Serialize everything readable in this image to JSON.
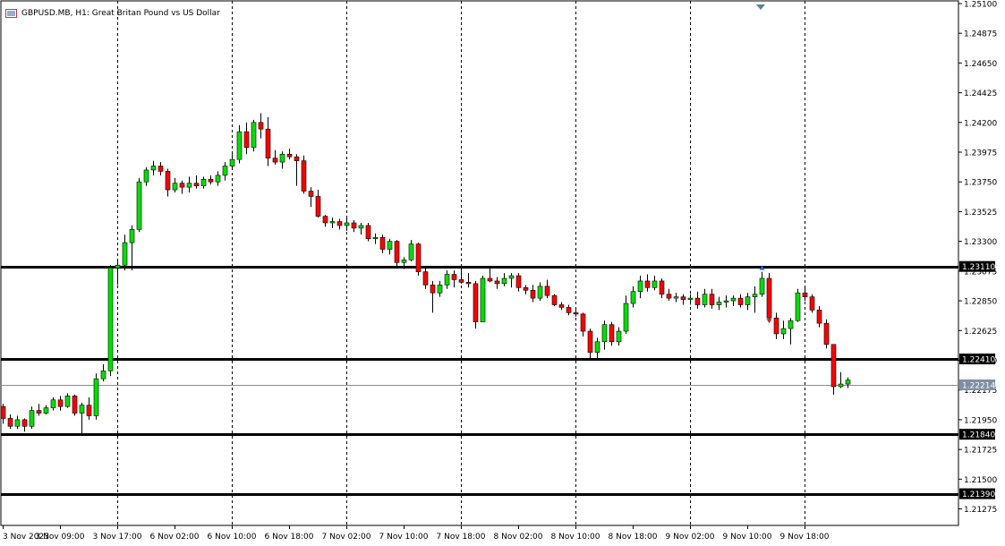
{
  "chart_data": {
    "type": "candlestick",
    "symbol_label": "GBPUSD.MB, H1:  Great Britan Pound vs US Dollar",
    "ylim": [
      1.2115,
      1.2512
    ],
    "yticks": [
      "1.25100",
      "1.24875",
      "1.24650",
      "1.24425",
      "1.24200",
      "1.23975",
      "1.23750",
      "1.23525",
      "1.23300",
      "1.23075",
      "1.22850",
      "1.22625",
      "1.22400",
      "1.22175",
      "1.21950",
      "1.21725",
      "1.21500",
      "1.21275"
    ],
    "xtick_labels": [
      "3 Nov 2023",
      "3 Nov 09:00",
      "3 Nov 17:00",
      "6 Nov 02:00",
      "6 Nov 10:00",
      "6 Nov 18:00",
      "7 Nov 02:00",
      "7 Nov 10:00",
      "7 Nov 18:00",
      "8 Nov 02:00",
      "8 Nov 10:00",
      "8 Nov 18:00",
      "9 Nov 02:00",
      "9 Nov 10:00",
      "9 Nov 18:00"
    ],
    "separator_after_bar": [
      21,
      45,
      69,
      93,
      117
    ],
    "levels": [
      {
        "price": 1.2311,
        "label": "1.23110"
      },
      {
        "price": 1.2241,
        "label": "1.22410"
      },
      {
        "price": 1.2184,
        "label": "1.21840"
      },
      {
        "price": 1.2139,
        "label": "1.21390"
      }
    ],
    "current_price": {
      "price": 1.22214,
      "label": "1.22214"
    },
    "candles": [
      [
        1.2205,
        1.2207,
        1.2192,
        1.2196
      ],
      [
        1.2196,
        1.2199,
        1.2188,
        1.219
      ],
      [
        1.219,
        1.2198,
        1.2188,
        1.2195
      ],
      [
        1.2195,
        1.2196,
        1.2186,
        1.219
      ],
      [
        1.219,
        1.2205,
        1.2188,
        1.2202
      ],
      [
        1.2202,
        1.2207,
        1.2198,
        1.22
      ],
      [
        1.22,
        1.2206,
        1.2199,
        1.2204
      ],
      [
        1.2204,
        1.2212,
        1.2202,
        1.221
      ],
      [
        1.221,
        1.2213,
        1.2202,
        1.2205
      ],
      [
        1.2205,
        1.2215,
        1.2204,
        1.2213
      ],
      [
        1.2213,
        1.2214,
        1.2198,
        1.22
      ],
      [
        1.22,
        1.2208,
        1.2184,
        1.2206
      ],
      [
        1.2206,
        1.2212,
        1.2195,
        1.2198
      ],
      [
        1.2198,
        1.223,
        1.2195,
        1.2226
      ],
      [
        1.2226,
        1.2237,
        1.2224,
        1.2232
      ],
      [
        1.2232,
        1.2312,
        1.2228,
        1.231
      ],
      [
        1.231,
        1.2315,
        1.2297,
        1.2312
      ],
      [
        1.2312,
        1.2335,
        1.2308,
        1.2329
      ],
      [
        1.2329,
        1.2342,
        1.2308,
        1.2339
      ],
      [
        1.2339,
        1.2378,
        1.2337,
        1.2375
      ],
      [
        1.2375,
        1.2386,
        1.2372,
        1.2384
      ],
      [
        1.2384,
        1.2391,
        1.238,
        1.2387
      ],
      [
        1.2387,
        1.239,
        1.238,
        1.2383
      ],
      [
        1.2383,
        1.2385,
        1.2364,
        1.2369
      ],
      [
        1.2369,
        1.2378,
        1.2367,
        1.2374
      ],
      [
        1.2374,
        1.2376,
        1.2366,
        1.2371
      ],
      [
        1.2371,
        1.2379,
        1.2367,
        1.2374
      ],
      [
        1.2374,
        1.238,
        1.237,
        1.2372
      ],
      [
        1.2372,
        1.2379,
        1.237,
        1.2377
      ],
      [
        1.2377,
        1.238,
        1.2373,
        1.2375
      ],
      [
        1.2375,
        1.2383,
        1.2372,
        1.238
      ],
      [
        1.238,
        1.239,
        1.2376,
        1.2387
      ],
      [
        1.2387,
        1.2396,
        1.2384,
        1.2392
      ],
      [
        1.2392,
        1.2418,
        1.2389,
        1.2413
      ],
      [
        1.2413,
        1.242,
        1.2396,
        1.2401
      ],
      [
        1.2401,
        1.2422,
        1.2398,
        1.242
      ],
      [
        1.242,
        1.2427,
        1.2408,
        1.2415
      ],
      [
        1.2415,
        1.2424,
        1.2387,
        1.2393
      ],
      [
        1.2393,
        1.2399,
        1.2388,
        1.239
      ],
      [
        1.239,
        1.2398,
        1.2385,
        1.2396
      ],
      [
        1.2396,
        1.24,
        1.2392,
        1.2394
      ],
      [
        1.2394,
        1.2396,
        1.2372,
        1.2391
      ],
      [
        1.2391,
        1.2395,
        1.2366,
        1.2368
      ],
      [
        1.2368,
        1.2371,
        1.2356,
        1.2364
      ],
      [
        1.2364,
        1.2369,
        1.2348,
        1.2349
      ],
      [
        1.2349,
        1.235,
        1.2341,
        1.2344
      ],
      [
        1.2344,
        1.2348,
        1.234,
        1.2345
      ],
      [
        1.2345,
        1.2347,
        1.2339,
        1.2342
      ],
      [
        1.2342,
        1.2348,
        1.2338,
        1.2344
      ],
      [
        1.2344,
        1.2346,
        1.2337,
        1.234
      ],
      [
        1.234,
        1.2344,
        1.2335,
        1.2342
      ],
      [
        1.2342,
        1.2344,
        1.233,
        1.2332
      ],
      [
        1.2332,
        1.2336,
        1.2328,
        1.2333
      ],
      [
        1.2333,
        1.2335,
        1.2321,
        1.2324
      ],
      [
        1.2324,
        1.2332,
        1.232,
        1.233
      ],
      [
        1.233,
        1.2331,
        1.231,
        1.2314
      ],
      [
        1.2314,
        1.2318,
        1.2309,
        1.2316
      ],
      [
        1.2316,
        1.2331,
        1.2315,
        1.2328
      ],
      [
        1.2328,
        1.2329,
        1.2304,
        1.2307
      ],
      [
        1.2307,
        1.2311,
        1.2294,
        1.2297
      ],
      [
        1.2297,
        1.23,
        1.2276,
        1.2291
      ],
      [
        1.2291,
        1.23,
        1.2288,
        1.2297
      ],
      [
        1.2297,
        1.2308,
        1.2294,
        1.2305
      ],
      [
        1.2305,
        1.2308,
        1.2295,
        1.2301
      ],
      [
        1.2301,
        1.2312,
        1.2298,
        1.2299
      ],
      [
        1.2299,
        1.2306,
        1.2295,
        1.2298
      ],
      [
        1.2298,
        1.23,
        1.2264,
        1.2269
      ],
      [
        1.2269,
        1.2304,
        1.2269,
        1.2302
      ],
      [
        1.2302,
        1.231,
        1.2299,
        1.23
      ],
      [
        1.23,
        1.2303,
        1.2294,
        1.2298
      ],
      [
        1.2298,
        1.2306,
        1.2296,
        1.2302
      ],
      [
        1.2302,
        1.2306,
        1.2295,
        1.2304
      ],
      [
        1.2304,
        1.2306,
        1.2292,
        1.2295
      ],
      [
        1.2295,
        1.2297,
        1.229,
        1.2293
      ],
      [
        1.2293,
        1.2297,
        1.2284,
        1.2287
      ],
      [
        1.2287,
        1.2299,
        1.2285,
        1.2296
      ],
      [
        1.2296,
        1.2301,
        1.2287,
        1.2289
      ],
      [
        1.2289,
        1.229,
        1.2281,
        1.2282
      ],
      [
        1.2282,
        1.2284,
        1.2278,
        1.228
      ],
      [
        1.228,
        1.2282,
        1.2274,
        1.2276
      ],
      [
        1.2276,
        1.2279,
        1.2273,
        1.2275
      ],
      [
        1.2275,
        1.2276,
        1.2258,
        1.2262
      ],
      [
        1.2262,
        1.2264,
        1.2241,
        1.2246
      ],
      [
        1.2246,
        1.2257,
        1.2241,
        1.2254
      ],
      [
        1.2254,
        1.227,
        1.2248,
        1.2267
      ],
      [
        1.2267,
        1.2269,
        1.2251,
        1.2254
      ],
      [
        1.2254,
        1.2265,
        1.2251,
        1.2262
      ],
      [
        1.2262,
        1.2289,
        1.226,
        1.2283
      ],
      [
        1.2283,
        1.2296,
        1.228,
        1.2292
      ],
      [
        1.2292,
        1.2304,
        1.2287,
        1.23
      ],
      [
        1.23,
        1.2305,
        1.2292,
        1.2295
      ],
      [
        1.2295,
        1.2304,
        1.2293,
        1.23
      ],
      [
        1.23,
        1.2302,
        1.2287,
        1.229
      ],
      [
        1.229,
        1.2294,
        1.2285,
        1.2287
      ],
      [
        1.2287,
        1.2291,
        1.2284,
        1.2288
      ],
      [
        1.2288,
        1.229,
        1.2282,
        1.2286
      ],
      [
        1.2286,
        1.229,
        1.2282,
        1.2287
      ],
      [
        1.2287,
        1.2292,
        1.2279,
        1.2282
      ],
      [
        1.2282,
        1.2294,
        1.228,
        1.229
      ],
      [
        1.229,
        1.2294,
        1.2279,
        1.2282
      ],
      [
        1.2282,
        1.2288,
        1.2278,
        1.2284
      ],
      [
        1.2284,
        1.2289,
        1.228,
        1.2285
      ],
      [
        1.2285,
        1.2289,
        1.2281,
        1.2287
      ],
      [
        1.2287,
        1.229,
        1.228,
        1.2282
      ],
      [
        1.2282,
        1.2291,
        1.2278,
        1.2288
      ],
      [
        1.2288,
        1.2296,
        1.2276,
        1.229
      ],
      [
        1.229,
        1.2307,
        1.2288,
        1.2302
      ],
      [
        1.2302,
        1.2306,
        1.227,
        1.2272
      ],
      [
        1.2272,
        1.2276,
        1.2256,
        1.226
      ],
      [
        1.226,
        1.227,
        1.2256,
        1.2264
      ],
      [
        1.2264,
        1.2272,
        1.2252,
        1.227
      ],
      [
        1.227,
        1.2294,
        1.2269,
        1.2291
      ],
      [
        1.2291,
        1.2295,
        1.2285,
        1.2288
      ],
      [
        1.2288,
        1.229,
        1.2276,
        1.2278
      ],
      [
        1.2278,
        1.2281,
        1.2265,
        1.2268
      ],
      [
        1.2268,
        1.2271,
        1.2249,
        1.2252
      ],
      [
        1.2252,
        1.2252,
        1.2214,
        1.222
      ],
      [
        1.222,
        1.2231,
        1.2219,
        1.2222
      ],
      [
        1.2222,
        1.2227,
        1.2219,
        1.2225
      ]
    ],
    "markers": [
      {
        "bar": 106,
        "symbol": "blue-arrow-up"
      },
      {
        "bar": 107,
        "symbol": "red-arrow-down"
      }
    ]
  },
  "top_marker": "triangle-down"
}
